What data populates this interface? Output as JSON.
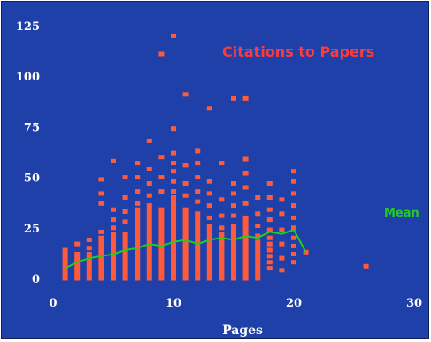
{
  "chart_data": {
    "type": "scatter",
    "title": "Citations to Papers",
    "xlabel": "Pages",
    "ylabel": "",
    "xlim": [
      0,
      30
    ],
    "ylim": [
      0,
      125
    ],
    "xticks": [
      "0",
      "10",
      "20",
      "30"
    ],
    "yticks": [
      "0",
      "25",
      "50",
      "75",
      "100",
      "125"
    ],
    "grid": false,
    "legend": "none",
    "colors": {
      "background": "#1f40a8",
      "points": "#ff5a3c",
      "mean_line": "#22cc22",
      "title": "#ff3a3a",
      "text": "#ffffff"
    },
    "series": [
      {
        "values": [
          [
            1,
            0
          ],
          [
            1,
            2
          ],
          [
            1,
            4
          ],
          [
            1,
            6
          ],
          [
            1,
            8
          ],
          [
            1,
            10
          ],
          [
            1,
            12
          ],
          [
            1,
            14
          ],
          [
            2,
            0
          ],
          [
            2,
            2
          ],
          [
            2,
            4
          ],
          [
            2,
            6
          ],
          [
            2,
            8
          ],
          [
            2,
            10
          ],
          [
            2,
            12
          ],
          [
            2,
            17
          ],
          [
            3,
            0
          ],
          [
            3,
            2
          ],
          [
            3,
            4
          ],
          [
            3,
            6
          ],
          [
            3,
            8
          ],
          [
            3,
            10
          ],
          [
            3,
            12
          ],
          [
            3,
            15
          ],
          [
            3,
            19
          ],
          [
            4,
            0
          ],
          [
            4,
            2
          ],
          [
            4,
            4
          ],
          [
            4,
            6
          ],
          [
            4,
            8
          ],
          [
            4,
            10
          ],
          [
            4,
            12
          ],
          [
            4,
            14
          ],
          [
            4,
            16
          ],
          [
            4,
            18
          ],
          [
            4,
            20
          ],
          [
            4,
            23
          ],
          [
            4,
            37
          ],
          [
            4,
            42
          ],
          [
            4,
            49
          ],
          [
            5,
            0
          ],
          [
            5,
            2
          ],
          [
            5,
            4
          ],
          [
            5,
            6
          ],
          [
            5,
            8
          ],
          [
            5,
            10
          ],
          [
            5,
            12
          ],
          [
            5,
            14
          ],
          [
            5,
            16
          ],
          [
            5,
            18
          ],
          [
            5,
            20
          ],
          [
            5,
            22
          ],
          [
            5,
            25
          ],
          [
            5,
            29
          ],
          [
            5,
            34
          ],
          [
            5,
            58
          ],
          [
            6,
            0
          ],
          [
            6,
            2
          ],
          [
            6,
            4
          ],
          [
            6,
            6
          ],
          [
            6,
            8
          ],
          [
            6,
            10
          ],
          [
            6,
            12
          ],
          [
            6,
            14
          ],
          [
            6,
            16
          ],
          [
            6,
            18
          ],
          [
            6,
            20
          ],
          [
            6,
            22
          ],
          [
            6,
            28
          ],
          [
            6,
            33
          ],
          [
            6,
            40
          ],
          [
            6,
            50
          ],
          [
            7,
            0
          ],
          [
            7,
            2
          ],
          [
            7,
            4
          ],
          [
            7,
            6
          ],
          [
            7,
            8
          ],
          [
            7,
            10
          ],
          [
            7,
            12
          ],
          [
            7,
            14
          ],
          [
            7,
            16
          ],
          [
            7,
            18
          ],
          [
            7,
            20
          ],
          [
            7,
            22
          ],
          [
            7,
            24
          ],
          [
            7,
            26
          ],
          [
            7,
            28
          ],
          [
            7,
            30
          ],
          [
            7,
            32
          ],
          [
            7,
            34
          ],
          [
            7,
            37
          ],
          [
            7,
            43
          ],
          [
            7,
            50
          ],
          [
            7,
            57
          ],
          [
            8,
            0
          ],
          [
            8,
            2
          ],
          [
            8,
            4
          ],
          [
            8,
            6
          ],
          [
            8,
            8
          ],
          [
            8,
            10
          ],
          [
            8,
            12
          ],
          [
            8,
            14
          ],
          [
            8,
            16
          ],
          [
            8,
            18
          ],
          [
            8,
            20
          ],
          [
            8,
            22
          ],
          [
            8,
            24
          ],
          [
            8,
            26
          ],
          [
            8,
            28
          ],
          [
            8,
            30
          ],
          [
            8,
            32
          ],
          [
            8,
            34
          ],
          [
            8,
            36
          ],
          [
            8,
            41
          ],
          [
            8,
            47
          ],
          [
            8,
            54
          ],
          [
            8,
            68
          ],
          [
            9,
            0
          ],
          [
            9,
            2
          ],
          [
            9,
            4
          ],
          [
            9,
            6
          ],
          [
            9,
            8
          ],
          [
            9,
            10
          ],
          [
            9,
            12
          ],
          [
            9,
            14
          ],
          [
            9,
            16
          ],
          [
            9,
            18
          ],
          [
            9,
            20
          ],
          [
            9,
            22
          ],
          [
            9,
            24
          ],
          [
            9,
            26
          ],
          [
            9,
            28
          ],
          [
            9,
            30
          ],
          [
            9,
            32
          ],
          [
            9,
            34
          ],
          [
            9,
            43
          ],
          [
            9,
            50
          ],
          [
            9,
            60
          ],
          [
            9,
            111
          ],
          [
            10,
            0
          ],
          [
            10,
            2
          ],
          [
            10,
            4
          ],
          [
            10,
            6
          ],
          [
            10,
            8
          ],
          [
            10,
            10
          ],
          [
            10,
            12
          ],
          [
            10,
            14
          ],
          [
            10,
            16
          ],
          [
            10,
            18
          ],
          [
            10,
            20
          ],
          [
            10,
            22
          ],
          [
            10,
            24
          ],
          [
            10,
            26
          ],
          [
            10,
            28
          ],
          [
            10,
            30
          ],
          [
            10,
            32
          ],
          [
            10,
            34
          ],
          [
            10,
            36
          ],
          [
            10,
            38
          ],
          [
            10,
            40
          ],
          [
            10,
            43
          ],
          [
            10,
            48
          ],
          [
            10,
            53
          ],
          [
            10,
            57
          ],
          [
            10,
            62
          ],
          [
            10,
            74
          ],
          [
            10,
            120
          ],
          [
            11,
            0
          ],
          [
            11,
            2
          ],
          [
            11,
            4
          ],
          [
            11,
            6
          ],
          [
            11,
            8
          ],
          [
            11,
            10
          ],
          [
            11,
            12
          ],
          [
            11,
            14
          ],
          [
            11,
            16
          ],
          [
            11,
            18
          ],
          [
            11,
            20
          ],
          [
            11,
            22
          ],
          [
            11,
            24
          ],
          [
            11,
            26
          ],
          [
            11,
            28
          ],
          [
            11,
            30
          ],
          [
            11,
            32
          ],
          [
            11,
            34
          ],
          [
            11,
            41
          ],
          [
            11,
            47
          ],
          [
            11,
            56
          ],
          [
            11,
            91
          ],
          [
            12,
            0
          ],
          [
            12,
            2
          ],
          [
            12,
            4
          ],
          [
            12,
            6
          ],
          [
            12,
            8
          ],
          [
            12,
            10
          ],
          [
            12,
            12
          ],
          [
            12,
            14
          ],
          [
            12,
            16
          ],
          [
            12,
            18
          ],
          [
            12,
            20
          ],
          [
            12,
            22
          ],
          [
            12,
            24
          ],
          [
            12,
            26
          ],
          [
            12,
            28
          ],
          [
            12,
            30
          ],
          [
            12,
            32
          ],
          [
            12,
            38
          ],
          [
            12,
            43
          ],
          [
            12,
            50
          ],
          [
            12,
            57
          ],
          [
            12,
            63
          ],
          [
            13,
            0
          ],
          [
            13,
            2
          ],
          [
            13,
            4
          ],
          [
            13,
            6
          ],
          [
            13,
            8
          ],
          [
            13,
            10
          ],
          [
            13,
            12
          ],
          [
            13,
            14
          ],
          [
            13,
            16
          ],
          [
            13,
            18
          ],
          [
            13,
            20
          ],
          [
            13,
            22
          ],
          [
            13,
            24
          ],
          [
            13,
            26
          ],
          [
            13,
            30
          ],
          [
            13,
            36
          ],
          [
            13,
            42
          ],
          [
            13,
            48
          ],
          [
            13,
            84
          ],
          [
            14,
            0
          ],
          [
            14,
            2
          ],
          [
            14,
            4
          ],
          [
            14,
            6
          ],
          [
            14,
            8
          ],
          [
            14,
            10
          ],
          [
            14,
            12
          ],
          [
            14,
            14
          ],
          [
            14,
            16
          ],
          [
            14,
            18
          ],
          [
            14,
            20
          ],
          [
            14,
            22
          ],
          [
            14,
            25
          ],
          [
            14,
            31
          ],
          [
            14,
            39
          ],
          [
            14,
            57
          ],
          [
            15,
            0
          ],
          [
            15,
            2
          ],
          [
            15,
            4
          ],
          [
            15,
            6
          ],
          [
            15,
            8
          ],
          [
            15,
            10
          ],
          [
            15,
            12
          ],
          [
            15,
            14
          ],
          [
            15,
            16
          ],
          [
            15,
            18
          ],
          [
            15,
            20
          ],
          [
            15,
            22
          ],
          [
            15,
            24
          ],
          [
            15,
            26
          ],
          [
            15,
            31
          ],
          [
            15,
            36
          ],
          [
            15,
            42
          ],
          [
            15,
            47
          ],
          [
            15,
            89
          ],
          [
            16,
            0
          ],
          [
            16,
            2
          ],
          [
            16,
            4
          ],
          [
            16,
            6
          ],
          [
            16,
            8
          ],
          [
            16,
            10
          ],
          [
            16,
            12
          ],
          [
            16,
            14
          ],
          [
            16,
            16
          ],
          [
            16,
            18
          ],
          [
            16,
            20
          ],
          [
            16,
            22
          ],
          [
            16,
            24
          ],
          [
            16,
            26
          ],
          [
            16,
            28
          ],
          [
            16,
            30
          ],
          [
            16,
            37
          ],
          [
            16,
            45
          ],
          [
            16,
            52
          ],
          [
            16,
            59
          ],
          [
            16,
            89
          ],
          [
            17,
            0
          ],
          [
            17,
            2
          ],
          [
            17,
            4
          ],
          [
            17,
            6
          ],
          [
            17,
            8
          ],
          [
            17,
            10
          ],
          [
            17,
            12
          ],
          [
            17,
            14
          ],
          [
            17,
            16
          ],
          [
            17,
            18
          ],
          [
            17,
            21
          ],
          [
            17,
            26
          ],
          [
            17,
            32
          ],
          [
            17,
            40
          ],
          [
            18,
            5
          ],
          [
            18,
            8
          ],
          [
            18,
            11
          ],
          [
            18,
            14
          ],
          [
            18,
            17
          ],
          [
            18,
            20
          ],
          [
            18,
            24
          ],
          [
            18,
            29
          ],
          [
            18,
            34
          ],
          [
            18,
            40
          ],
          [
            18,
            47
          ],
          [
            19,
            4
          ],
          [
            19,
            10
          ],
          [
            19,
            17
          ],
          [
            19,
            24
          ],
          [
            19,
            32
          ],
          [
            19,
            39
          ],
          [
            20,
            8
          ],
          [
            20,
            12
          ],
          [
            20,
            16
          ],
          [
            20,
            20
          ],
          [
            20,
            25
          ],
          [
            20,
            30
          ],
          [
            20,
            36
          ],
          [
            20,
            42
          ],
          [
            20,
            48
          ],
          [
            20,
            53
          ],
          [
            21,
            13
          ],
          [
            26,
            6
          ]
        ]
      }
    ],
    "mean_line": {
      "label": "Mean",
      "x": [
        1,
        2,
        3,
        4,
        5,
        6,
        7,
        8,
        9,
        10,
        11,
        12,
        13,
        14,
        15,
        16,
        17,
        18,
        19,
        20,
        21
      ],
      "y": [
        5,
        8,
        10,
        11,
        12,
        14,
        15,
        17,
        16,
        18,
        19,
        17,
        19,
        20,
        19,
        21,
        20,
        23,
        22,
        24,
        13
      ]
    }
  }
}
